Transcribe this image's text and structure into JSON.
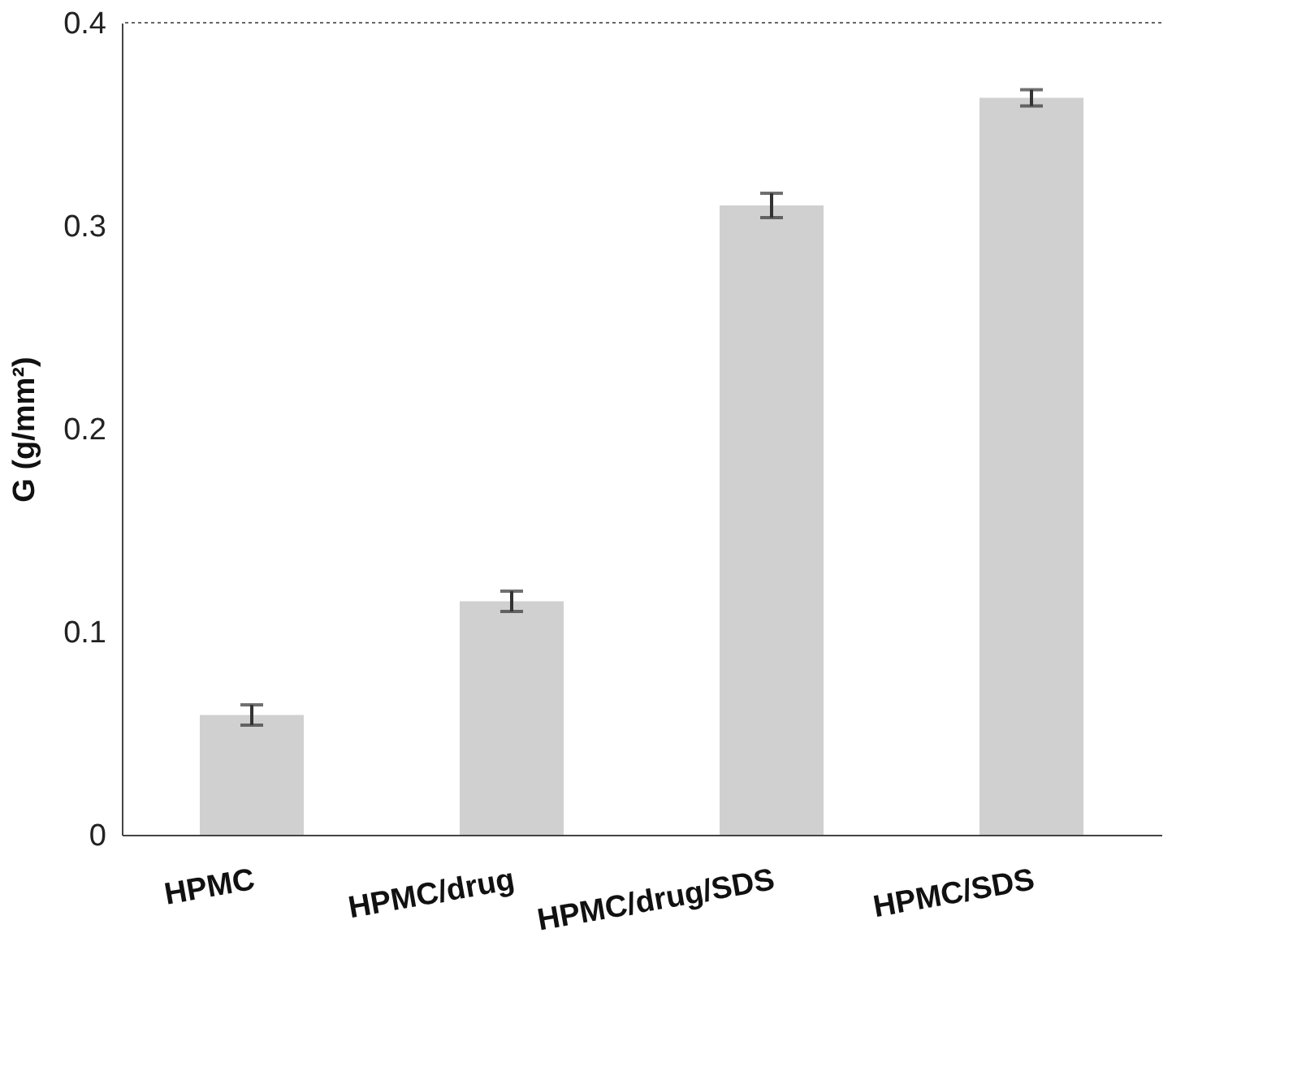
{
  "chart_data": {
    "type": "bar",
    "ylabel": "G (g/mm²)",
    "categories": [
      "HPMC",
      "HPMC/drug",
      "HPMC/drug/SDS",
      "HPMC/SDS"
    ],
    "values": [
      0.059,
      0.115,
      0.31,
      0.363
    ],
    "errors": [
      0.005,
      0.005,
      0.006,
      0.004
    ],
    "color": "#d0d0d0",
    "ylim": [
      0,
      0.4
    ],
    "yticks": [
      0,
      0.1,
      0.2,
      0.3,
      0.4
    ],
    "grid": false
  }
}
